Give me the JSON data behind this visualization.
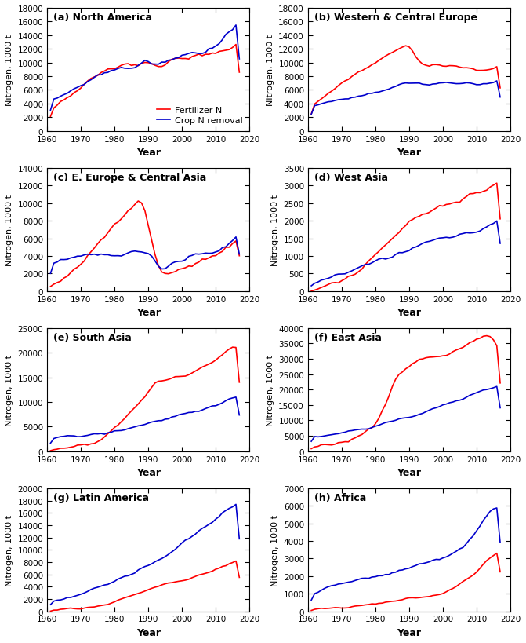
{
  "panels": [
    {
      "label": "(a) North America",
      "ylim": [
        0,
        18000
      ],
      "yticks": [
        0,
        2000,
        4000,
        6000,
        8000,
        10000,
        12000,
        14000,
        16000,
        18000
      ],
      "show_legend": true
    },
    {
      "label": "(b) Western & Central Europe",
      "ylim": [
        0,
        18000
      ],
      "yticks": [
        0,
        2000,
        4000,
        6000,
        8000,
        10000,
        12000,
        14000,
        16000,
        18000
      ],
      "show_legend": false
    },
    {
      "label": "(c) E. Europe & Central Asia",
      "ylim": [
        0,
        14000
      ],
      "yticks": [
        0,
        2000,
        4000,
        6000,
        8000,
        10000,
        12000,
        14000
      ],
      "show_legend": false
    },
    {
      "label": "(d) West Asia",
      "ylim": [
        0,
        3500
      ],
      "yticks": [
        0,
        500,
        1000,
        1500,
        2000,
        2500,
        3000,
        3500
      ],
      "show_legend": false
    },
    {
      "label": "(e) South Asia",
      "ylim": [
        0,
        25000
      ],
      "yticks": [
        0,
        5000,
        10000,
        15000,
        20000,
        25000
      ],
      "show_legend": false
    },
    {
      "label": "(f) East Asia",
      "ylim": [
        0,
        40000
      ],
      "yticks": [
        0,
        5000,
        10000,
        15000,
        20000,
        25000,
        30000,
        35000,
        40000
      ],
      "show_legend": false
    },
    {
      "label": "(g) Latin America",
      "ylim": [
        0,
        20000
      ],
      "yticks": [
        0,
        2000,
        4000,
        6000,
        8000,
        10000,
        12000,
        14000,
        16000,
        18000,
        20000
      ],
      "show_legend": false
    },
    {
      "label": "(h) Africa",
      "ylim": [
        0,
        7000
      ],
      "yticks": [
        0,
        1000,
        2000,
        3000,
        4000,
        5000,
        6000,
        7000
      ],
      "show_legend": false
    }
  ],
  "line_color_fert": "#ff0000",
  "line_color_crop": "#0000cc",
  "line_width": 1.2,
  "xlabel": "Year",
  "ylabel": "Nitrogen, 1000 t",
  "xlim": [
    1960,
    2020
  ],
  "xticks": [
    1960,
    1970,
    1980,
    1990,
    2000,
    2010,
    2020
  ]
}
